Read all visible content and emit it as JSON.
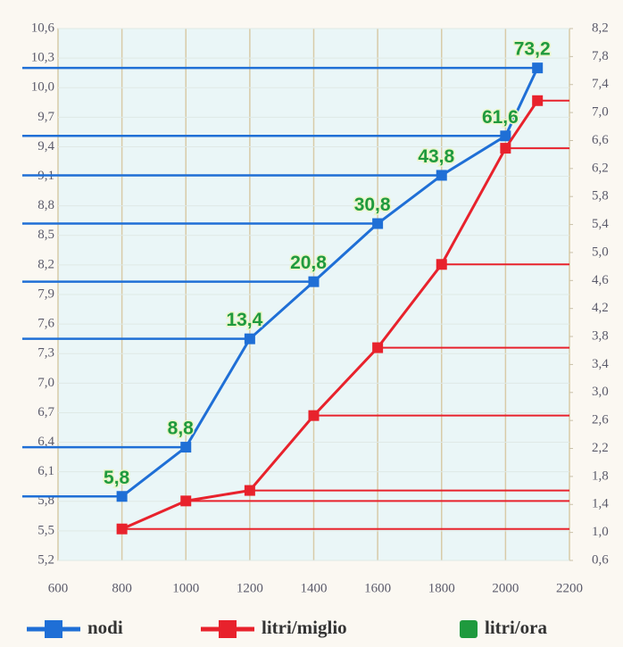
{
  "chart_data": {
    "type": "line",
    "x": [
      800,
      1000,
      1200,
      1400,
      1600,
      1800,
      2000,
      2100
    ],
    "series": [
      {
        "name": "nodi",
        "color": "#1f6fd6",
        "values": [
          5.85,
          6.35,
          7.45,
          8.03,
          8.62,
          9.11,
          9.51,
          10.2
        ]
      },
      {
        "name": "litri/miglio",
        "color": "#e8222c",
        "axis": "y2",
        "values": [
          1.05,
          1.45,
          1.6,
          2.67,
          3.64,
          4.83,
          6.49,
          7.17
        ]
      },
      {
        "name": "litri/ora",
        "color": "#1f9a3e",
        "values": [
          5.8,
          8.8,
          13.4,
          20.8,
          30.8,
          43.8,
          61.6,
          73.2
        ],
        "value_labels": [
          "5,8",
          "8,8",
          "13,4",
          "20,8",
          "30,8",
          "43,8",
          "61,6",
          "73,2"
        ]
      }
    ],
    "xlim": [
      600,
      2200
    ],
    "xticks": [
      600,
      800,
      1000,
      1200,
      1400,
      1600,
      1800,
      2000,
      2200
    ],
    "ylim": [
      5.2,
      10.6
    ],
    "yticks": [
      {
        "value": 5.2,
        "label": "5,2"
      },
      {
        "value": 5.5,
        "label": "5,5"
      },
      {
        "value": 5.8,
        "label": "5,8"
      },
      {
        "value": 6.1,
        "label": "6,1"
      },
      {
        "value": 6.4,
        "label": "6,4"
      },
      {
        "value": 6.7,
        "label": "6,7"
      },
      {
        "value": 7.0,
        "label": "7,0"
      },
      {
        "value": 7.3,
        "label": "7,3"
      },
      {
        "value": 7.6,
        "label": "7,6"
      },
      {
        "value": 7.9,
        "label": "7,9"
      },
      {
        "value": 8.2,
        "label": "8,2"
      },
      {
        "value": 8.5,
        "label": "8,5"
      },
      {
        "value": 8.8,
        "label": "8,8"
      },
      {
        "value": 9.1,
        "label": "9,1"
      },
      {
        "value": 9.4,
        "label": "9,4"
      },
      {
        "value": 9.7,
        "label": "9,7"
      },
      {
        "value": 10.0,
        "label": "10,0"
      },
      {
        "value": 10.3,
        "label": "10,3"
      },
      {
        "value": 10.6,
        "label": "10,6"
      }
    ],
    "y2lim": [
      0.6,
      8.2
    ],
    "y2ticks": [
      {
        "value": 0.6,
        "label": "0,6"
      },
      {
        "value": 1.0,
        "label": "1,0"
      },
      {
        "value": 1.4,
        "label": "1,4"
      },
      {
        "value": 1.8,
        "label": "1,8"
      },
      {
        "value": 2.2,
        "label": "2,2"
      },
      {
        "value": 2.6,
        "label": "2,6"
      },
      {
        "value": 3.0,
        "label": "3,0"
      },
      {
        "value": 3.4,
        "label": "3,4"
      },
      {
        "value": 3.8,
        "label": "3,8"
      },
      {
        "value": 4.2,
        "label": "4,2"
      },
      {
        "value": 4.6,
        "label": "4,6"
      },
      {
        "value": 5.0,
        "label": "5,0"
      },
      {
        "value": 5.4,
        "label": "5,4"
      },
      {
        "value": 5.8,
        "label": "5,8"
      },
      {
        "value": 6.2,
        "label": "6,2"
      },
      {
        "value": 6.6,
        "label": "6,6"
      },
      {
        "value": 7.0,
        "label": "7,0"
      },
      {
        "value": 7.4,
        "label": "7,4"
      },
      {
        "value": 7.8,
        "label": "7,8"
      },
      {
        "value": 8.2,
        "label": "8,2"
      }
    ],
    "grid": true
  }
}
